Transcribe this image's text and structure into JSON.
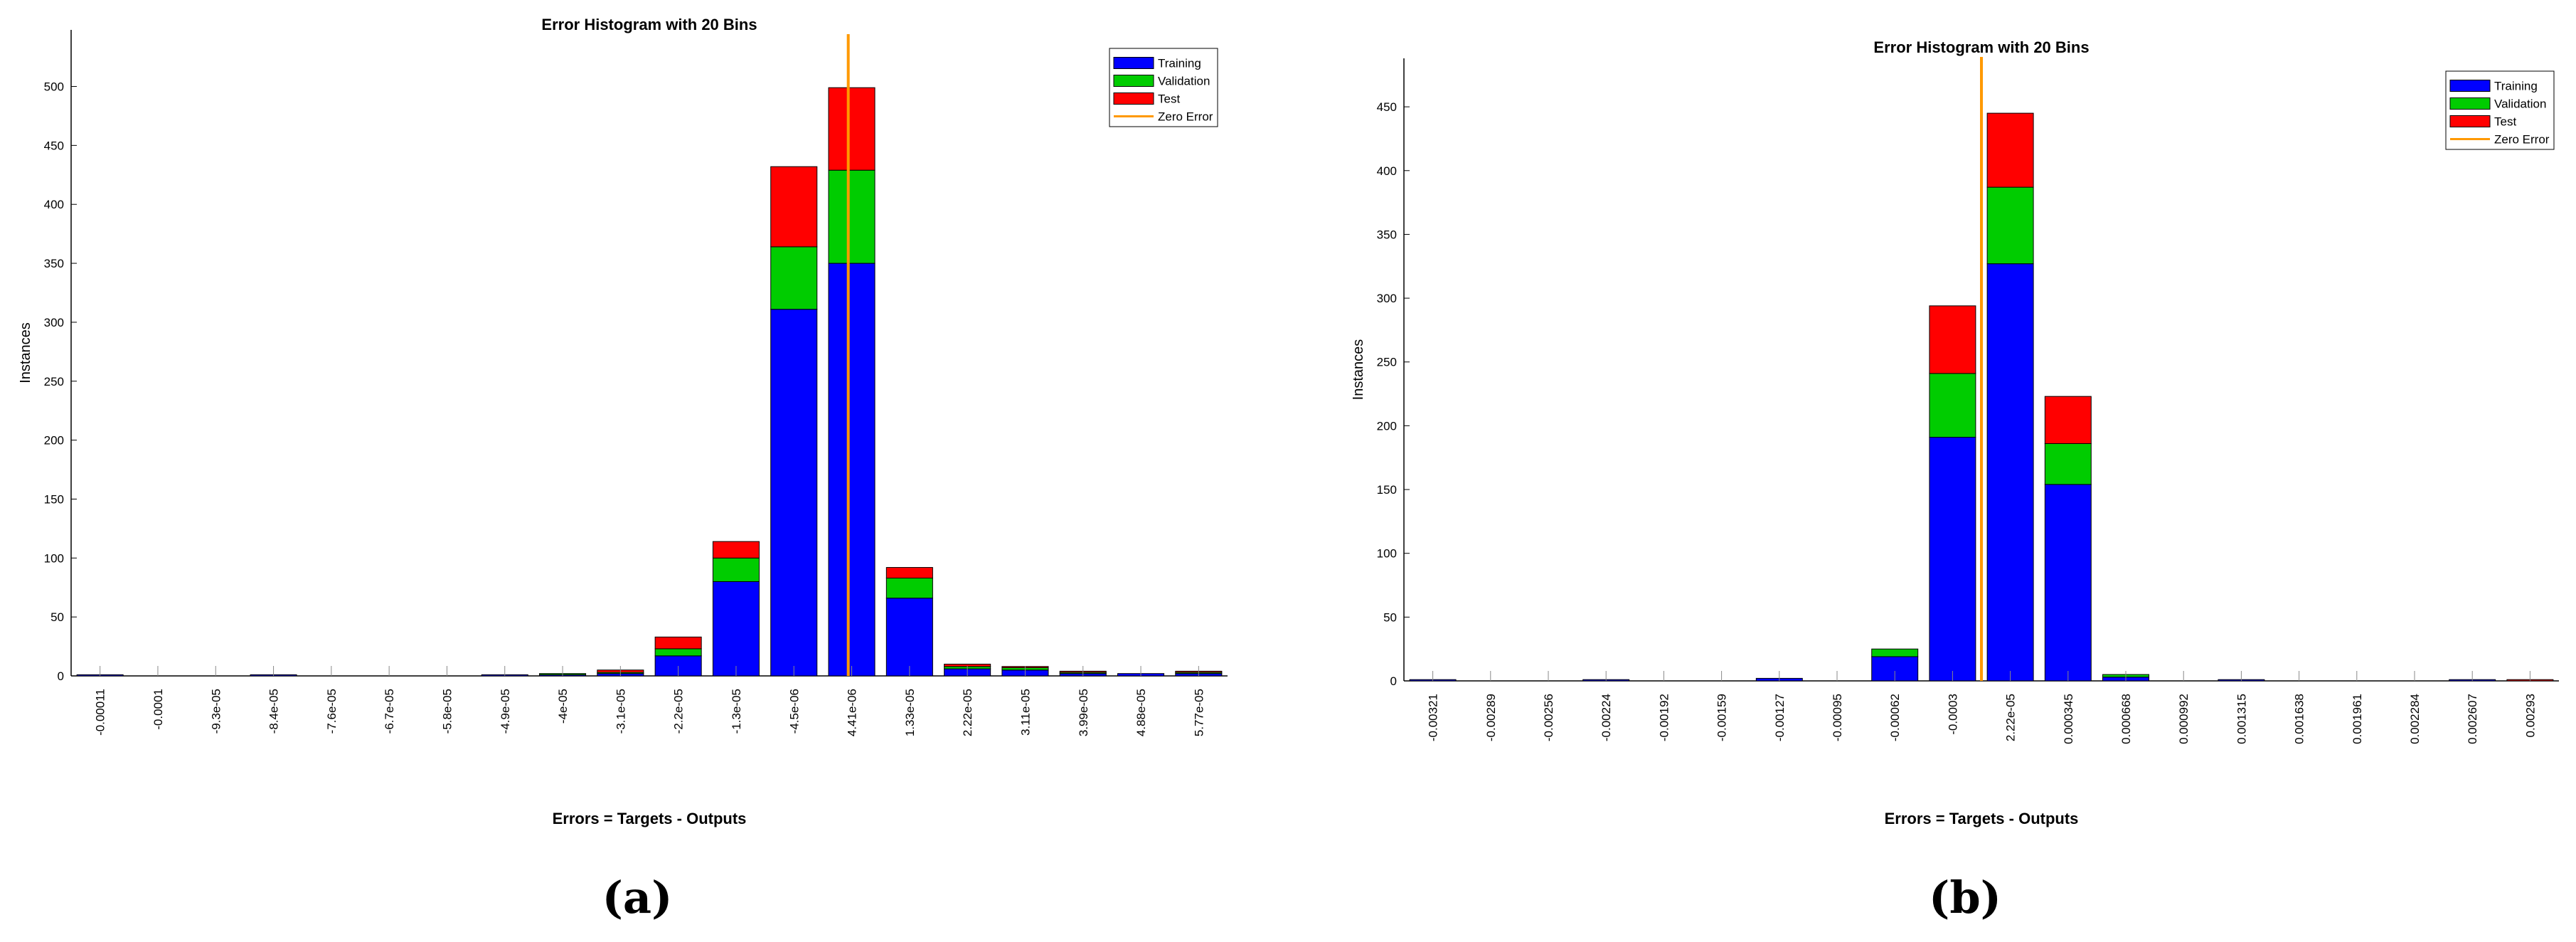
{
  "chart_data": [
    {
      "panel_label": "(a)",
      "type": "bar",
      "stacked": true,
      "title": "Error Histogram with 20 Bins",
      "xlabel": "Errors = Targets - Outputs",
      "ylabel": "Instances",
      "ylim": [
        0,
        548
      ],
      "yticks": [
        0,
        50,
        100,
        150,
        200,
        250,
        300,
        350,
        400,
        450,
        500
      ],
      "categories": [
        "-0.00011",
        "-0.0001",
        "-9.3e-05",
        "-8.4e-05",
        "-7.6e-05",
        "-6.7e-05",
        "-5.8e-05",
        "-4.9e-05",
        "-4e-05",
        "-3.1e-05",
        "-2.2e-05",
        "-1.3e-05",
        "-4.5e-06",
        "4.41e-06",
        "1.33e-05",
        "2.22e-05",
        "3.11e-05",
        "3.99e-05",
        "4.88e-05",
        "5.77e-05"
      ],
      "series": [
        {
          "name": "Training",
          "color": "#0000ff",
          "values": [
            1,
            0,
            0,
            1,
            0,
            0,
            0,
            1,
            1,
            2,
            17,
            80,
            311,
            350,
            66,
            6,
            5,
            2,
            2,
            2
          ]
        },
        {
          "name": "Validation",
          "color": "#00cc00",
          "values": [
            0,
            0,
            0,
            0,
            0,
            0,
            0,
            0,
            1,
            1,
            6,
            20,
            53,
            79,
            17,
            2,
            2,
            1,
            0,
            1
          ]
        },
        {
          "name": "Test",
          "color": "#ff0000",
          "values": [
            0,
            0,
            0,
            0,
            0,
            0,
            0,
            0,
            0,
            2,
            10,
            14,
            68,
            70,
            9,
            2,
            1,
            1,
            0,
            1
          ]
        }
      ],
      "zero_error": {
        "name": "Zero Error",
        "color": "#ff9900",
        "x": 13.44
      },
      "legend_position": "top-right",
      "grid": false
    },
    {
      "panel_label": "(b)",
      "type": "bar",
      "stacked": true,
      "title": "Error Histogram with 20 Bins",
      "xlabel": "Errors = Targets - Outputs",
      "ylabel": "Instances",
      "ylim": [
        0,
        488
      ],
      "yticks": [
        0,
        50,
        100,
        150,
        200,
        250,
        300,
        350,
        400,
        450
      ],
      "categories": [
        "-0.00321",
        "-0.00289",
        "-0.00256",
        "-0.00224",
        "-0.00192",
        "-0.00159",
        "-0.00127",
        "-0.00095",
        "-0.00062",
        "-0.0003",
        "2.22e-05",
        "0.000345",
        "0.000668",
        "0.000992",
        "0.001315",
        "0.001638",
        "0.001961",
        "0.002284",
        "0.002607",
        "0.00293"
      ],
      "series": [
        {
          "name": "Training",
          "color": "#0000ff",
          "values": [
            1,
            0,
            0,
            1,
            0,
            0,
            2,
            0,
            19,
            191,
            327,
            154,
            3,
            0,
            1,
            0,
            0,
            0,
            1,
            0
          ]
        },
        {
          "name": "Validation",
          "color": "#00cc00",
          "values": [
            0,
            0,
            0,
            0,
            0,
            0,
            0,
            0,
            6,
            50,
            60,
            32,
            2,
            0,
            0,
            0,
            0,
            0,
            0,
            0
          ]
        },
        {
          "name": "Test",
          "color": "#ff0000",
          "values": [
            0,
            0,
            0,
            0,
            0,
            0,
            0,
            0,
            0,
            53,
            58,
            37,
            0,
            0,
            0,
            0,
            0,
            0,
            0,
            1
          ]
        }
      ],
      "zero_error": {
        "name": "Zero Error",
        "color": "#ff9900",
        "x": 10.0
      },
      "legend_position": "top-right",
      "grid": false
    }
  ]
}
